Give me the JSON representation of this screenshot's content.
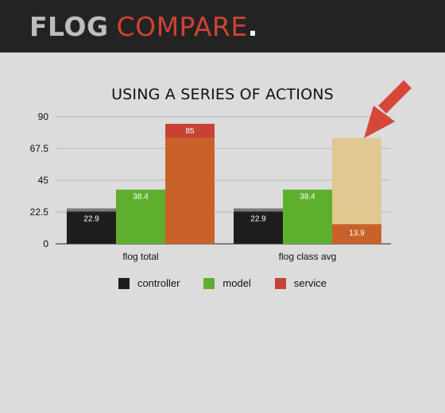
{
  "header": {
    "brand_word1": "FLOG",
    "brand_word2": "COMPARE",
    "brand_dot": "."
  },
  "colors": {
    "controller": "#1e1e1e",
    "model": "#5faf2e",
    "service": "#c9622a",
    "service_top": "#c64232",
    "highlight": "#e2c483",
    "arrow": "#d6473a",
    "controller_cap": "#7a7a7a"
  },
  "chart_data": {
    "type": "bar",
    "title": "USING A SERIES OF ACTIONS",
    "xlabel": "",
    "ylabel": "",
    "ylim": [
      0,
      90
    ],
    "yticks": [
      "0",
      "22.5",
      "45",
      "67.5",
      "90"
    ],
    "categories": [
      "flog total",
      "flog class avg"
    ],
    "series": [
      {
        "name": "controller",
        "values": [
          22.9,
          22.9
        ],
        "labels": [
          "22.9",
          "22.9"
        ]
      },
      {
        "name": "model",
        "values": [
          38.4,
          38.4
        ],
        "labels": [
          "38.4",
          "38.4"
        ]
      },
      {
        "name": "service",
        "values": [
          85,
          13.9
        ],
        "labels": [
          "85",
          "13.9"
        ]
      }
    ],
    "legend_position": "bottom",
    "grid": true,
    "annotations": [
      {
        "type": "arrow",
        "target": "flog class avg / service",
        "color": "#d6473a"
      }
    ]
  }
}
